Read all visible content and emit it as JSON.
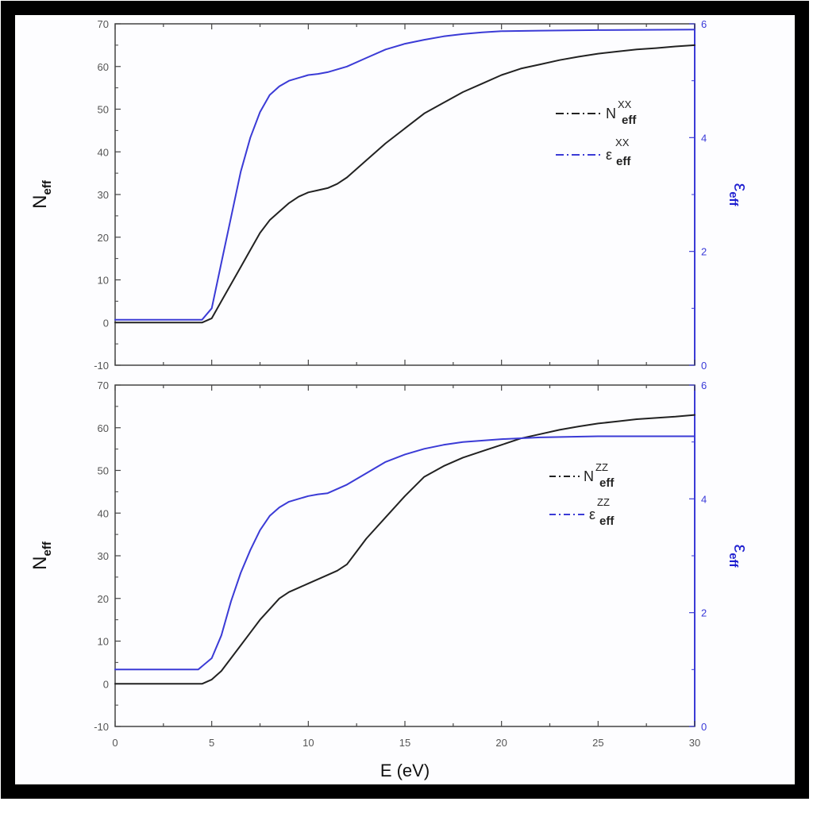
{
  "colors": {
    "frame": "#000000",
    "black_series": "#222222",
    "blue_series": "#3b3bd6"
  },
  "xaxis": {
    "label": "E (eV)",
    "range": [
      0,
      30
    ],
    "ticks": [
      "0",
      "5",
      "10",
      "15",
      "20",
      "25",
      "30"
    ]
  },
  "chart_data": [
    {
      "type": "line",
      "panel": "top",
      "ylabel_left": {
        "main": "N",
        "sub": "eff"
      },
      "ylabel_right": {
        "main": "ε",
        "sub": "eff"
      },
      "ylim_left": [
        -10,
        70
      ],
      "ylim_right": [
        0,
        6
      ],
      "yticks_left": [
        "-10",
        "0",
        "10",
        "20",
        "30",
        "40",
        "50",
        "60",
        "70"
      ],
      "yticks_right": [
        "0",
        "2",
        "4",
        "6"
      ],
      "legend": {
        "placement": "right",
        "entries": [
          {
            "main": "N",
            "sub": "eff",
            "sup": "XX",
            "line": "- · -"
          },
          {
            "main": "ε",
            "sub": "eff",
            "sup": "XX",
            "line": "- · -"
          }
        ]
      },
      "series": [
        {
          "axis": "left",
          "color": "black",
          "x": [
            0,
            4,
            4.5,
            5,
            5.5,
            6,
            6.5,
            7,
            7.5,
            8,
            8.5,
            9,
            9.5,
            10,
            10.5,
            11,
            11.5,
            12,
            13,
            14,
            15,
            16,
            17,
            18,
            19,
            20,
            21,
            22,
            23,
            24,
            25,
            26,
            27,
            28,
            29,
            30
          ],
          "y": [
            0,
            0,
            0,
            1,
            5,
            9,
            13,
            17,
            21,
            24,
            26,
            28,
            29.5,
            30.5,
            31,
            31.5,
            32.5,
            34,
            38,
            42,
            45.5,
            49,
            51.5,
            54,
            56,
            58,
            59.5,
            60.5,
            61.5,
            62.3,
            63,
            63.5,
            64,
            64.3,
            64.7,
            65
          ]
        },
        {
          "axis": "right",
          "color": "blue",
          "x": [
            0,
            4.5,
            5,
            5.5,
            6,
            6.5,
            7,
            7.5,
            8,
            8.5,
            9,
            9.5,
            10,
            10.5,
            11,
            12,
            13,
            14,
            15,
            16,
            17,
            18,
            19,
            20,
            22,
            25,
            30
          ],
          "y": [
            0.8,
            0.8,
            1.0,
            1.8,
            2.6,
            3.4,
            4.0,
            4.45,
            4.75,
            4.9,
            5.0,
            5.05,
            5.1,
            5.12,
            5.15,
            5.25,
            5.4,
            5.55,
            5.65,
            5.72,
            5.78,
            5.82,
            5.85,
            5.87,
            5.88,
            5.89,
            5.9
          ]
        }
      ]
    },
    {
      "type": "line",
      "panel": "bottom",
      "ylabel_left": {
        "main": "N",
        "sub": "eff"
      },
      "ylabel_right": {
        "main": "ε",
        "sub": "eff"
      },
      "ylim_left": [
        -10,
        70
      ],
      "ylim_right": [
        0,
        6
      ],
      "yticks_left": [
        "-10",
        "0",
        "10",
        "20",
        "30",
        "40",
        "50",
        "60",
        "70"
      ],
      "yticks_right": [
        "0",
        "2",
        "4",
        "6"
      ],
      "legend": {
        "placement": "right",
        "entries": [
          {
            "main": "N",
            "sub": "eff",
            "sup": "ZZ",
            "line": "- · -"
          },
          {
            "main": "ε",
            "sub": "eff",
            "sup": "ZZ",
            "line": "- · -"
          }
        ]
      },
      "series": [
        {
          "axis": "left",
          "color": "black",
          "x": [
            0,
            4,
            4.5,
            5,
            5.5,
            6,
            6.5,
            7,
            7.5,
            8,
            8.5,
            9,
            9.5,
            10,
            10.5,
            11,
            11.5,
            12,
            12.5,
            13,
            14,
            15,
            16,
            17,
            18,
            19,
            20,
            21,
            22,
            23,
            24,
            25,
            26,
            27,
            28,
            29,
            30
          ],
          "y": [
            0,
            0,
            0,
            1,
            3,
            6,
            9,
            12,
            15,
            17.5,
            20,
            21.5,
            22.5,
            23.5,
            24.5,
            25.5,
            26.5,
            28,
            31,
            34,
            39,
            44,
            48.5,
            51,
            53,
            54.5,
            56,
            57.5,
            58.5,
            59.5,
            60.3,
            61,
            61.5,
            62,
            62.3,
            62.6,
            63
          ]
        },
        {
          "axis": "right",
          "color": "blue",
          "x": [
            0,
            4.3,
            5,
            5.5,
            6,
            6.5,
            7,
            7.5,
            8,
            8.5,
            9,
            9.5,
            10,
            10.5,
            11,
            12,
            13,
            14,
            15,
            16,
            17,
            18,
            20,
            22,
            25,
            30
          ],
          "y": [
            1.0,
            1.0,
            1.2,
            1.6,
            2.2,
            2.7,
            3.1,
            3.45,
            3.7,
            3.85,
            3.95,
            4.0,
            4.05,
            4.08,
            4.1,
            4.25,
            4.45,
            4.65,
            4.78,
            4.88,
            4.95,
            5.0,
            5.05,
            5.08,
            5.1,
            5.1
          ]
        }
      ]
    }
  ]
}
